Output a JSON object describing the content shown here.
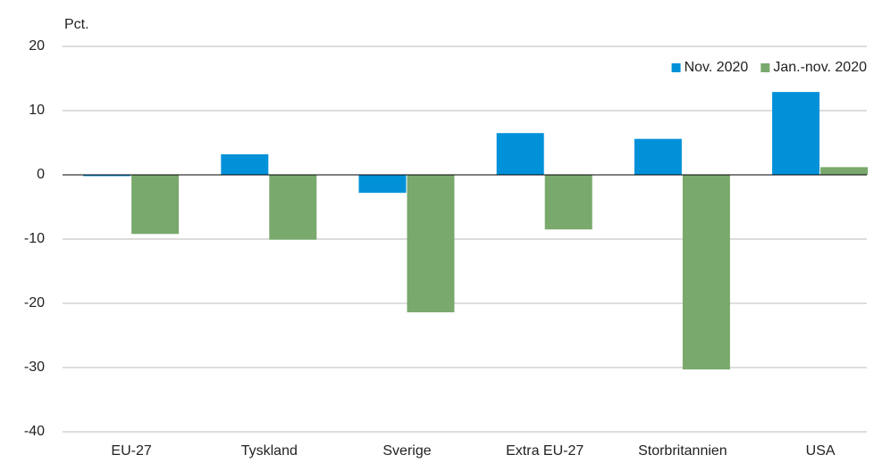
{
  "chart_data": {
    "type": "bar",
    "y_label": "Pct.",
    "categories": [
      "EU-27",
      "Tyskland",
      "Sverige",
      "Extra EU-27",
      "Storbritannien",
      "USA"
    ],
    "series": [
      {
        "name": "Nov. 2020",
        "color": "#0091d9",
        "values": [
          -0.2,
          3.2,
          -2.8,
          6.5,
          5.6,
          12.9
        ]
      },
      {
        "name": "Jan.-nov. 2020",
        "color": "#79a96c",
        "values": [
          -9.2,
          -10.1,
          -21.4,
          -8.5,
          -30.3,
          1.2
        ]
      }
    ],
    "ylim": [
      -40,
      20
    ],
    "yticks": [
      -40,
      -30,
      -20,
      -10,
      0,
      10,
      20
    ],
    "grid": true,
    "legend": "top-right"
  }
}
